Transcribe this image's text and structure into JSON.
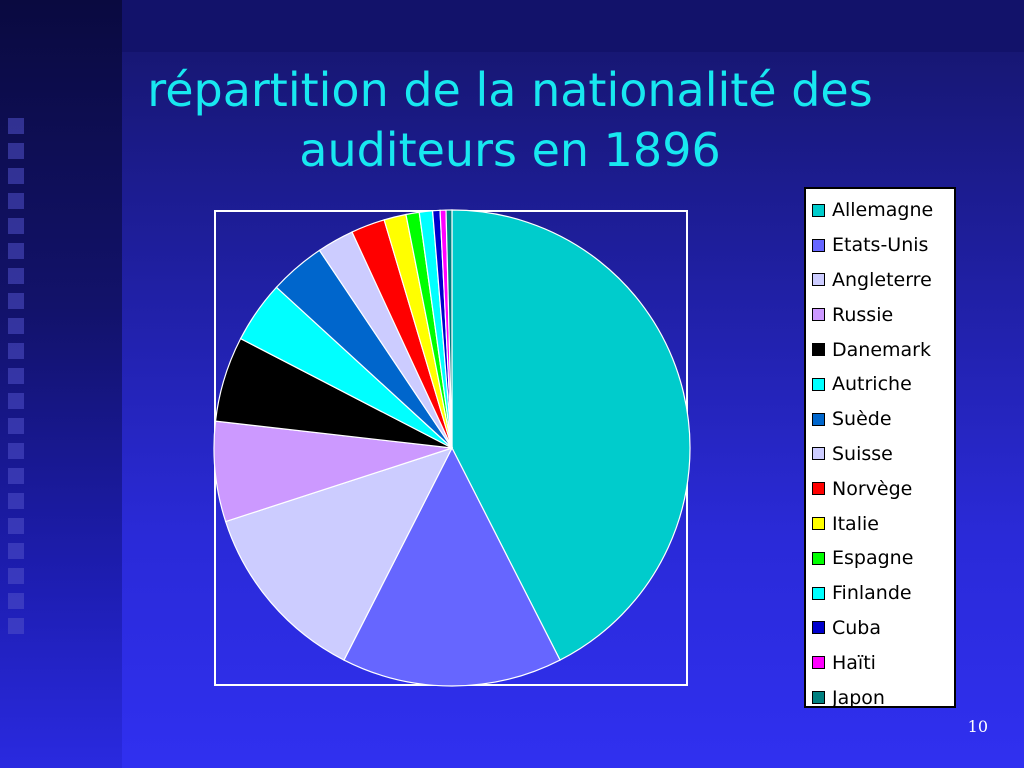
{
  "slide": {
    "title": "répartition de la nationalité des auditeurs en 1896",
    "page_number": "10"
  },
  "chart_data": {
    "type": "pie",
    "title": "",
    "legend_position": "right",
    "start": "12 o'clock, clockwise",
    "slices": [
      {
        "name": "Allemagne",
        "value": 42.5,
        "color": "#00cccc"
      },
      {
        "name": "Etats-Unis",
        "value": 15.0,
        "color": "#6666ff"
      },
      {
        "name": "Angleterre",
        "value": 12.5,
        "color": "#ccccff"
      },
      {
        "name": "Russie",
        "value": 6.8,
        "color": "#cc99ff"
      },
      {
        "name": "Danemark",
        "value": 5.8,
        "color": "#000000"
      },
      {
        "name": "Autriche",
        "value": 4.2,
        "color": "#00ffff"
      },
      {
        "name": "Suède",
        "value": 3.8,
        "color": "#0066cc"
      },
      {
        "name": "Suisse",
        "value": 2.5,
        "color": "#ccccff"
      },
      {
        "name": "Norvège",
        "value": 2.3,
        "color": "#ff0000"
      },
      {
        "name": "Italie",
        "value": 1.5,
        "color": "#ffff00"
      },
      {
        "name": "Espagne",
        "value": 0.9,
        "color": "#00ff00"
      },
      {
        "name": "Finlande",
        "value": 0.9,
        "color": "#00ffff"
      },
      {
        "name": "Cuba",
        "value": 0.5,
        "color": "#0000cc"
      },
      {
        "name": "Haïti",
        "value": 0.4,
        "color": "#ff00ff"
      },
      {
        "name": "Japon",
        "value": 0.4,
        "color": "#008080"
      }
    ]
  }
}
